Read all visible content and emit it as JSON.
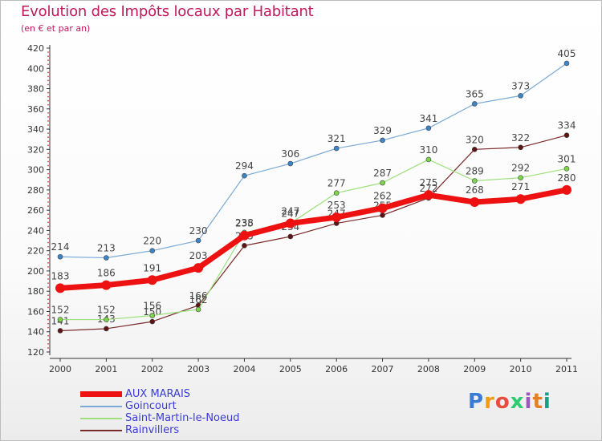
{
  "title": "Evolution des Impôts locaux par Habitant",
  "subtitle": "(en € et par an)",
  "logo": {
    "text": "Proxiti",
    "colors": [
      "#3a7bd5",
      "#f39c12",
      "#e74c3c",
      "#2ecc71",
      "#9b59b6",
      "#e67e22",
      "#16a085"
    ]
  },
  "chart_data": {
    "type": "line",
    "x": [
      "2000",
      "2001",
      "2002",
      "2003",
      "2004",
      "2005",
      "2006",
      "2007",
      "2008",
      "2009",
      "2010",
      "2011"
    ],
    "ylim": [
      120,
      420
    ],
    "yticks": [
      120,
      140,
      160,
      180,
      200,
      220,
      240,
      260,
      280,
      300,
      320,
      340,
      360,
      380,
      400,
      420
    ],
    "grid": false,
    "legend_position": "bottom-left",
    "series": [
      {
        "name": "Rainvillers",
        "color": "#7b2a2a",
        "point_color": "#5c1414",
        "width": 1.2,
        "radius": 3,
        "values": [
          141,
          143,
          150,
          166,
          225,
          234,
          247,
          255,
          272,
          320,
          322,
          334
        ]
      },
      {
        "name": "Saint-Martin-le-Noeud",
        "color": "#9be07a",
        "point_color": "#7cd64a",
        "width": 1.2,
        "radius": 3,
        "values": [
          152,
          152,
          156,
          162,
          238,
          247,
          277,
          287,
          310,
          289,
          292,
          301
        ]
      },
      {
        "name": "Goincourt",
        "color": "#7aa9d6",
        "point_color": "#3c84c8",
        "width": 1.2,
        "radius": 3,
        "values": [
          214,
          213,
          220,
          230,
          294,
          306,
          321,
          329,
          341,
          365,
          373,
          405
        ]
      },
      {
        "name": "AUX MARAIS",
        "color": "#ee1111",
        "point_color": "#ee1111",
        "width": 7,
        "radius": 6,
        "values": [
          183,
          186,
          191,
          203,
          235,
          247,
          253,
          262,
          275,
          268,
          271,
          280
        ]
      }
    ]
  }
}
